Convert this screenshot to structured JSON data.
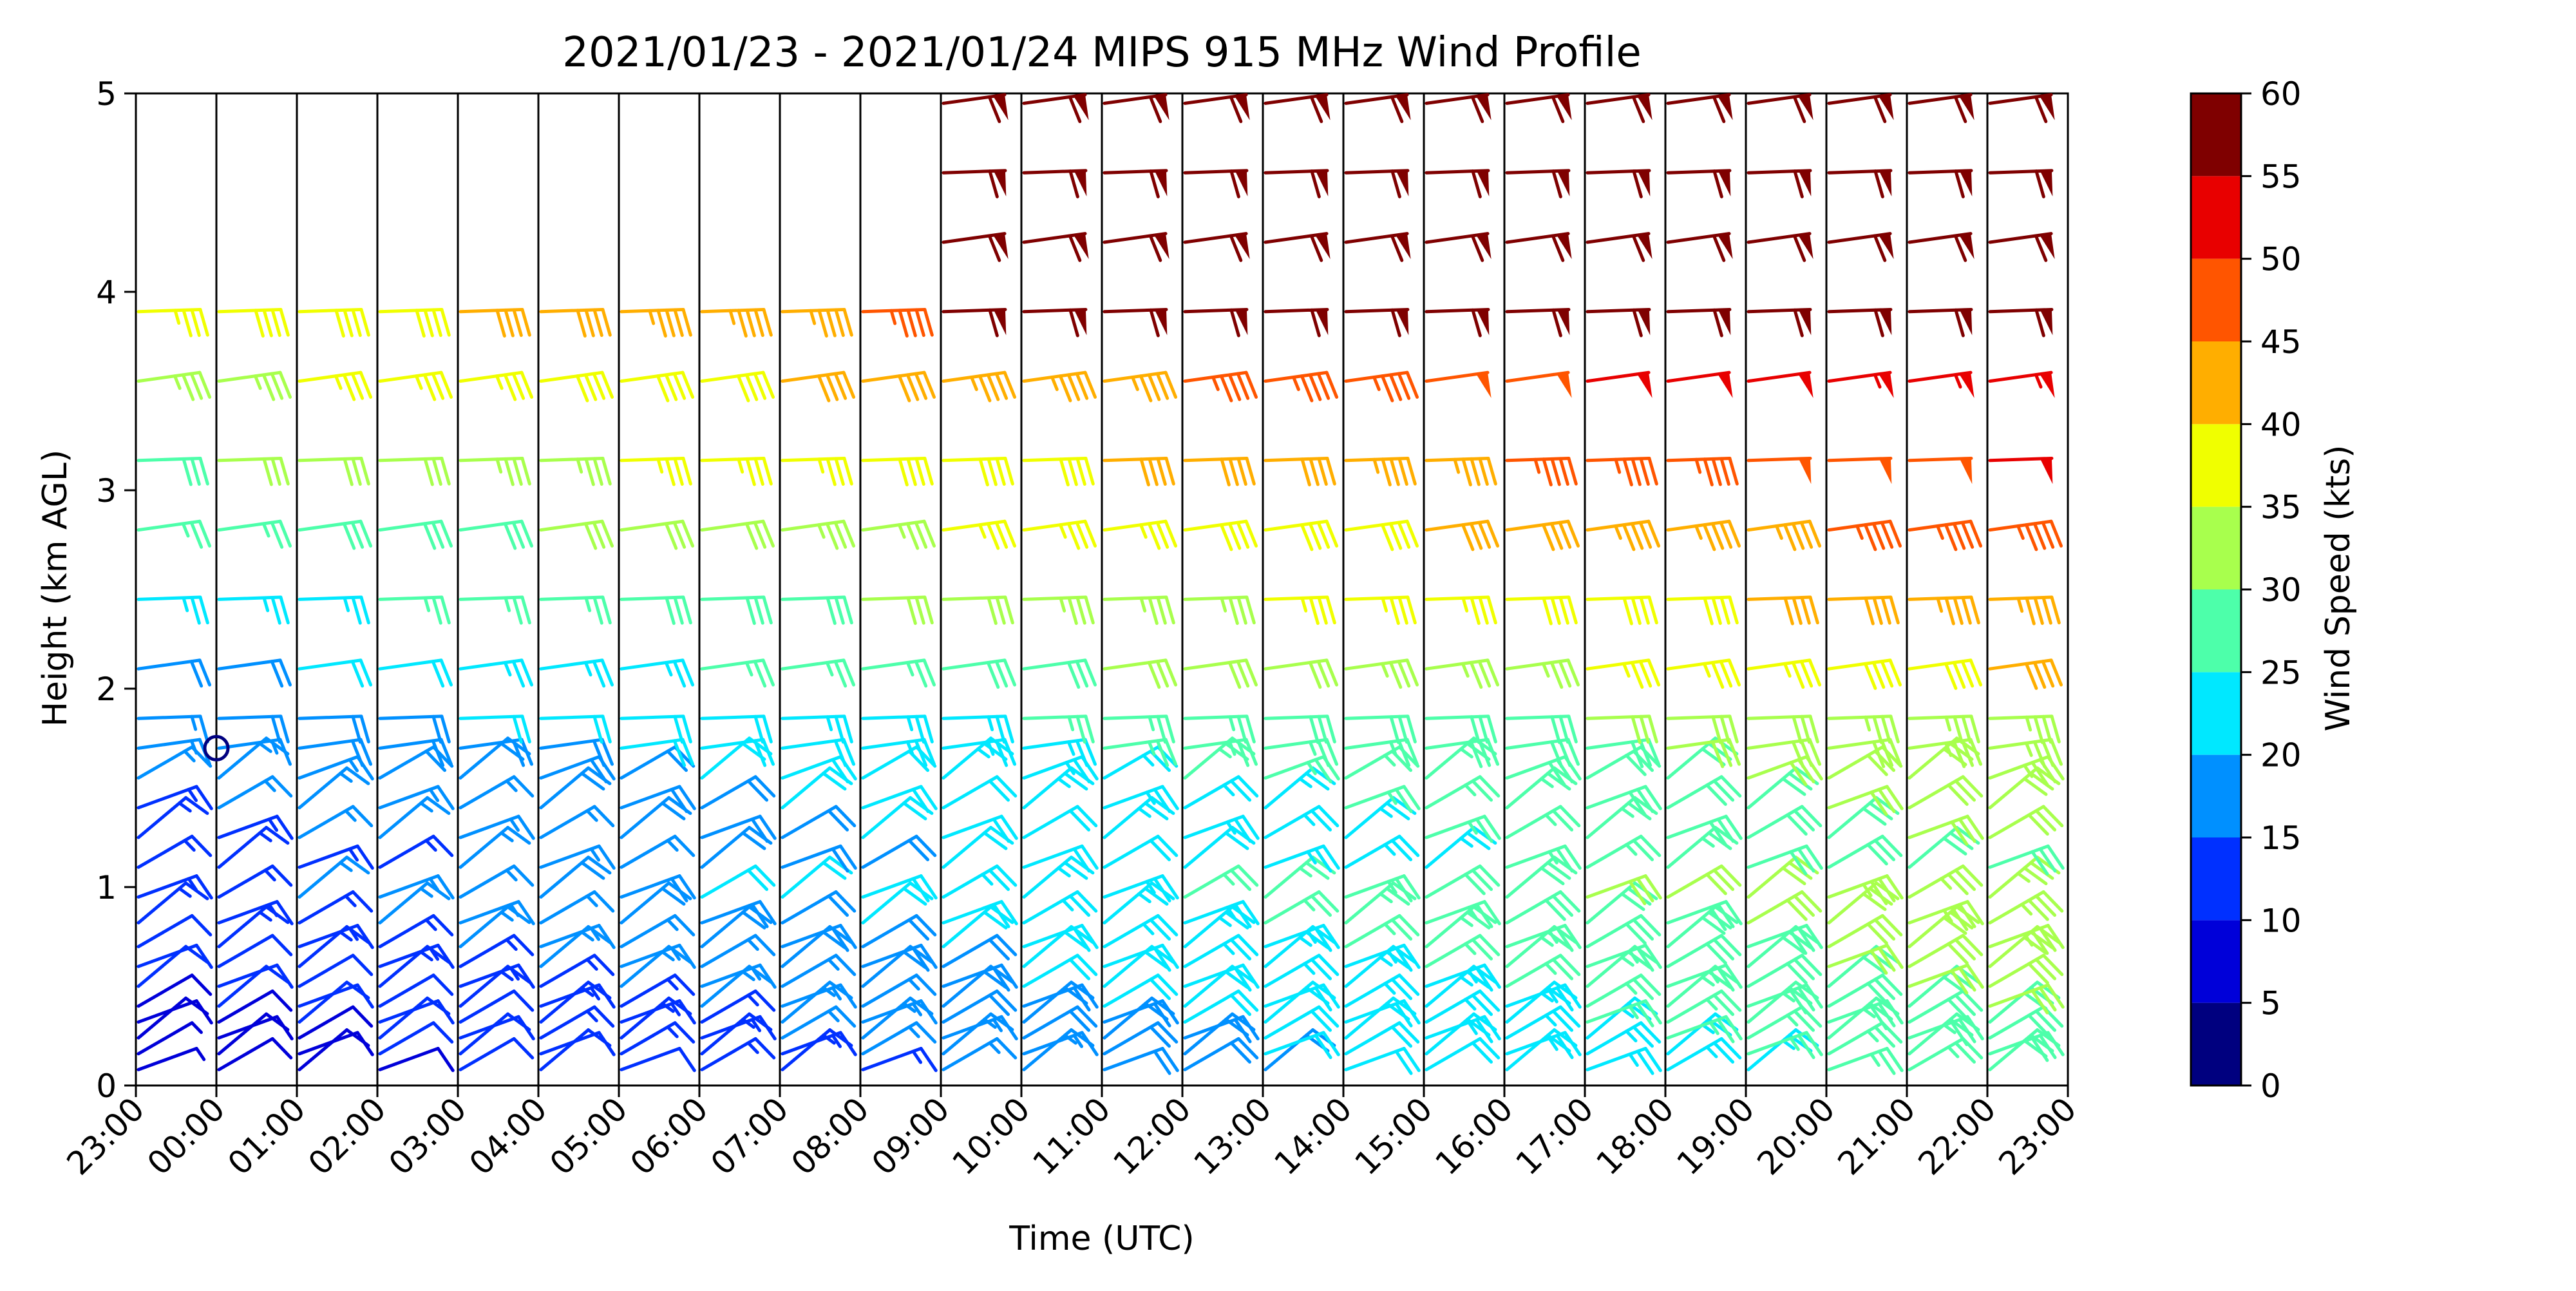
{
  "chart_data": {
    "type": "wind-barb-profile",
    "title": "2021/01/23 - 2021/01/24 MIPS 915 MHz Wind Profile",
    "xlabel": "Time (UTC)",
    "ylabel": "Height (km AGL)",
    "x_ticks": [
      "23:00",
      "00:00",
      "01:00",
      "02:00",
      "03:00",
      "04:00",
      "05:00",
      "06:00",
      "07:00",
      "08:00",
      "09:00",
      "10:00",
      "11:00",
      "12:00",
      "13:00",
      "14:00",
      "15:00",
      "16:00",
      "17:00",
      "18:00",
      "19:00",
      "20:00",
      "21:00",
      "22:00",
      "23:00"
    ],
    "y_ticks": [
      0,
      1,
      2,
      3,
      4,
      5
    ],
    "ylim": [
      0,
      5
    ],
    "grid": "vertical lines at each hourly tick",
    "colorbar": {
      "label": "Wind Speed (kts)",
      "ticks": [
        0,
        5,
        10,
        15,
        20,
        25,
        30,
        35,
        40,
        45,
        50,
        55,
        60
      ],
      "bins": [
        {
          "min": 0,
          "max": 5,
          "color": "#00007f"
        },
        {
          "min": 5,
          "max": 10,
          "color": "#0000d9"
        },
        {
          "min": 10,
          "max": 15,
          "color": "#0030ff"
        },
        {
          "min": 15,
          "max": 20,
          "color": "#0090ff"
        },
        {
          "min": 20,
          "max": 25,
          "color": "#00e8ff"
        },
        {
          "min": 25,
          "max": 30,
          "color": "#4dffaa"
        },
        {
          "min": 30,
          "max": 35,
          "color": "#a8ff4d"
        },
        {
          "min": 35,
          "max": 40,
          "color": "#f0ff00"
        },
        {
          "min": 40,
          "max": 45,
          "color": "#ffae00"
        },
        {
          "min": 45,
          "max": 50,
          "color": "#ff5500"
        },
        {
          "min": 50,
          "max": 55,
          "color": "#e80000"
        },
        {
          "min": 55,
          "max": 60,
          "color": "#7f0000"
        }
      ]
    }
  }
}
